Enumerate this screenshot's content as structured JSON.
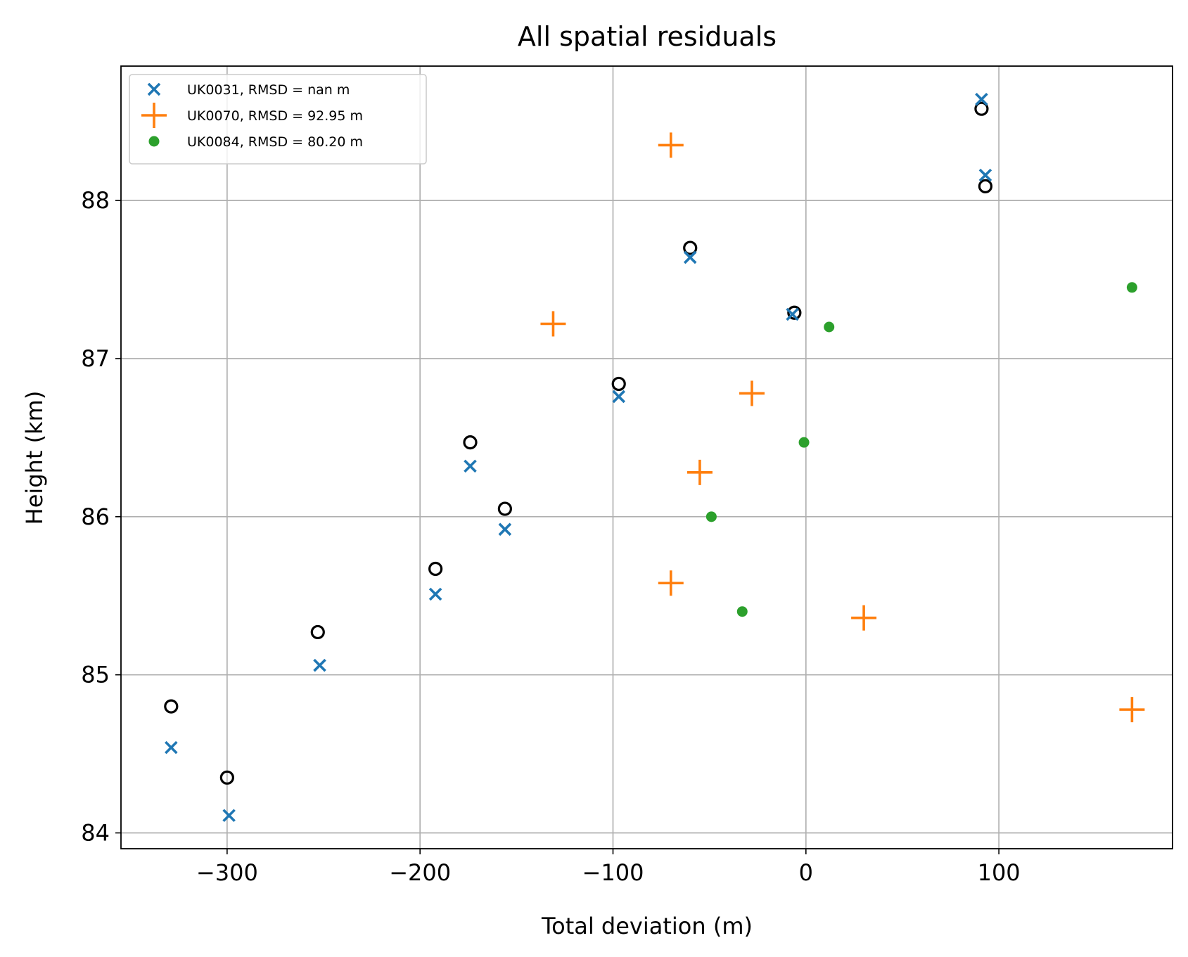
{
  "chart_data": {
    "type": "scatter",
    "title": "All spatial residuals",
    "xlabel": "Total deviation (m)",
    "ylabel": "Height (km)",
    "xlim": [
      -355,
      190
    ],
    "ylim": [
      83.9,
      88.85
    ],
    "xticks": [
      -300,
      -200,
      -100,
      0,
      100
    ],
    "xtick_labels": [
      "−300",
      "−200",
      "−100",
      "0",
      "100"
    ],
    "yticks": [
      84,
      85,
      86,
      87,
      88
    ],
    "ytick_labels": [
      "84",
      "85",
      "86",
      "87",
      "88"
    ],
    "grid": true,
    "legend_position": "top-left",
    "series": [
      {
        "name": "UK0031, RMSD = nan m",
        "marker": "x",
        "color": "#1f77b4",
        "in_legend": true,
        "x": [
          -329,
          -299,
          -252,
          -192,
          -174,
          -156,
          -97,
          -60,
          -7,
          91,
          93
        ],
        "y": [
          84.54,
          84.11,
          85.06,
          85.51,
          86.32,
          85.92,
          86.76,
          87.64,
          87.28,
          88.64,
          88.16
        ]
      },
      {
        "name": "UK0070, RMSD = 92.95 m",
        "marker": "plus",
        "color": "#ff7f0e",
        "in_legend": true,
        "x": [
          -70,
          -131,
          -28,
          -55,
          -70,
          30,
          169
        ],
        "y": [
          88.35,
          87.22,
          86.78,
          86.28,
          85.58,
          85.36,
          84.78
        ]
      },
      {
        "name": "UK0084, RMSD = 80.20 m",
        "marker": "dot",
        "color": "#2ca02c",
        "in_legend": true,
        "x": [
          169,
          12,
          -1,
          -49,
          -33
        ],
        "y": [
          87.45,
          87.2,
          86.47,
          86.0,
          85.4
        ]
      },
      {
        "marker": "circle",
        "color": "#000000",
        "in_legend": false,
        "x": [
          -329,
          -300,
          -253,
          -192,
          -174,
          -156,
          -97,
          -60,
          -6,
          91,
          93
        ],
        "y": [
          84.8,
          84.35,
          85.27,
          85.67,
          86.47,
          86.05,
          86.84,
          87.7,
          87.29,
          88.58,
          88.09
        ]
      }
    ]
  }
}
